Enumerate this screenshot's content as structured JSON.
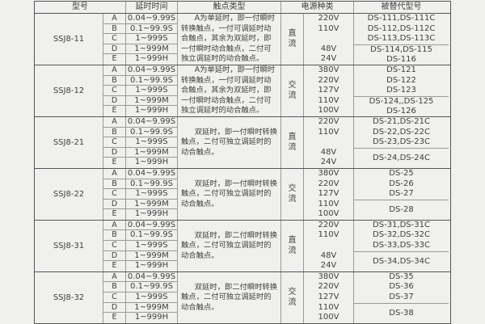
{
  "table": {
    "headers": {
      "model": "型号",
      "delay_time": "延时时间",
      "contact_type": "触点类型",
      "power_kind": "电源种类",
      "replaced_model": "被替代型号"
    },
    "blocks": [
      {
        "model": "SSJ8-11",
        "rows": [
          {
            "letter": "A",
            "range": "0.04~9.99S"
          },
          {
            "letter": "B",
            "range": "0.1~99.9S"
          },
          {
            "letter": "C",
            "range": "1~999S"
          },
          {
            "letter": "D",
            "range": "1~999M"
          },
          {
            "letter": "E",
            "range": "1~999H"
          }
        ],
        "contact": "A为单延时，即一付瞬时转换触点，一付可调延时动合触点，其余为双延时，即一付瞬时动合触点，二付可独立调延时的动合触点。",
        "power_type": "直流",
        "voltages": [
          "220V",
          "110V",
          "",
          "48V",
          "24V"
        ],
        "replaced_top": [
          "DS-111,DS-111C",
          "DS-112,DS-112C",
          "DS-113,DS-113C"
        ],
        "replaced_bottom": [
          "DS-114,DS-115",
          "DS-116"
        ],
        "bottom_centered": false
      },
      {
        "model": "SSJ8-12",
        "rows": [
          {
            "letter": "A",
            "range": "0.04~9.99S"
          },
          {
            "letter": "B",
            "range": "0.1~99.9S"
          },
          {
            "letter": "C",
            "range": "1~999S"
          },
          {
            "letter": "D",
            "range": "1~999M"
          },
          {
            "letter": "E",
            "range": "1~999H"
          }
        ],
        "contact": "A为单延时，即一付瞬时转换触点，一付可调延时动合触点，其余为双延时，即一付瞬时动合触点，二付可独立调延时的动合触点。",
        "power_type": "交流",
        "voltages": [
          "380V",
          "220V",
          "127V",
          "110V",
          "100V"
        ],
        "replaced_top": [
          "DS-121",
          "DS-122",
          "DS-123"
        ],
        "replaced_bottom": [
          "DS-124,,DS-125",
          "DS-126"
        ],
        "bottom_centered": false
      },
      {
        "model": "SSJ8-21",
        "rows": [
          {
            "letter": "A",
            "range": "0.04~9.99S"
          },
          {
            "letter": "B",
            "range": "0.1~99.9S"
          },
          {
            "letter": "C",
            "range": "1~999S"
          },
          {
            "letter": "D",
            "range": "1~999M"
          },
          {
            "letter": "E",
            "range": "1~999H"
          }
        ],
        "contact": "双延时，即一付瞬时转换触点，二付可独立调延时的动合触点。",
        "power_type": "直流",
        "voltages": [
          "220V",
          "110V",
          "",
          "48V",
          "24V"
        ],
        "replaced_top": [
          "DS-21,DS-21C",
          "DS-22,DS-22C",
          "DS-23,DS-23C"
        ],
        "replaced_bottom": [
          "DS-24,DS-24C"
        ],
        "bottom_centered": true
      },
      {
        "model": "SSJ8-22",
        "rows": [
          {
            "letter": "A",
            "range": "0.04~9.99S"
          },
          {
            "letter": "B",
            "range": "0.1~99.9S"
          },
          {
            "letter": "C",
            "range": "1~999S"
          },
          {
            "letter": "D",
            "range": "1~999M"
          },
          {
            "letter": "E",
            "range": "1~999H"
          }
        ],
        "contact": "双延时，即一付瞬时转换触点，二付可独立调延时的动合触点。",
        "power_type": "交流",
        "voltages": [
          "380V",
          "220V",
          "127V",
          "110V",
          "100V"
        ],
        "replaced_top": [
          "DS-25",
          "DS-26",
          "DS-27"
        ],
        "replaced_bottom": [
          "DS-28"
        ],
        "bottom_centered": true
      },
      {
        "model": "SSJ8-31",
        "rows": [
          {
            "letter": "A",
            "range": "0.04~9.99S"
          },
          {
            "letter": "B",
            "range": "0.1~99.9S"
          },
          {
            "letter": "C",
            "range": "1~999S"
          },
          {
            "letter": "D",
            "range": "1~999M"
          },
          {
            "letter": "E",
            "range": "1~999H"
          }
        ],
        "contact": "双延时，即二付瞬时转换触点，二付可独立调延时的动合触点。",
        "power_type": "直流",
        "voltages": [
          "220V",
          "110V",
          "",
          "48V",
          "24V"
        ],
        "replaced_top": [
          "DS-31,DS-31C",
          "DS-32,DS-32C",
          "DS-33,DS-33C"
        ],
        "replaced_bottom": [
          "DS-34,DS-34C"
        ],
        "bottom_centered": true
      },
      {
        "model": "SSJ8-32",
        "rows": [
          {
            "letter": "A",
            "range": "0.04~9.99S"
          },
          {
            "letter": "B",
            "range": "0.1~99.9S"
          },
          {
            "letter": "C",
            "range": "1~999S"
          },
          {
            "letter": "D",
            "range": "1~999M"
          },
          {
            "letter": "E",
            "range": "1~999H"
          }
        ],
        "contact": "双延时，即二付瞬时转换触点，二付可独立调延时的动合触点。",
        "power_type": "交流",
        "voltages": [
          "380V",
          "220V",
          "127V",
          "110V",
          "100V"
        ],
        "replaced_top": [
          "DS-35",
          "DS-36",
          "DS-37"
        ],
        "replaced_bottom": [
          "DS-38"
        ],
        "bottom_centered": true
      }
    ]
  }
}
